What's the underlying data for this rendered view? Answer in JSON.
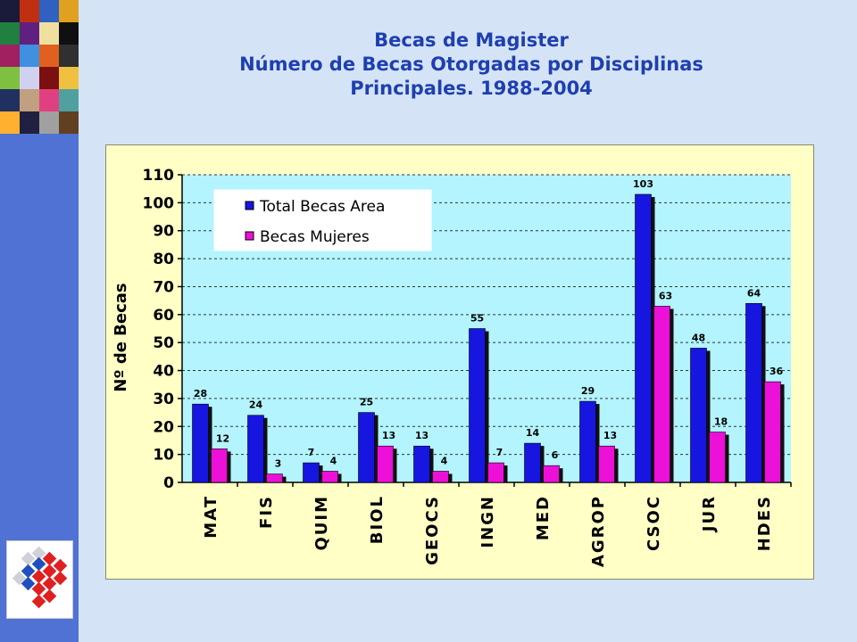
{
  "colors": {
    "sidebar": "#4f72d4",
    "title": "#1f3fb0",
    "plot_bg": "#b3f4ff",
    "frame_bg": "#ffffc6",
    "series_total": "#1616e0",
    "series_mujeres": "#ec10d8"
  },
  "title_lines": [
    "Becas de Magister",
    "Número de Becas Otorgadas por Disciplinas",
    "Principales. 1988-2004"
  ],
  "sidebar": {
    "collage_icon": "photo-collage",
    "logo_icon": "cube-logo"
  },
  "chart_data": {
    "type": "bar",
    "title": "",
    "xlabel": "",
    "ylabel": "Nº de Becas",
    "ylim": [
      0,
      110
    ],
    "yticks": [
      0,
      10,
      20,
      30,
      40,
      50,
      60,
      70,
      80,
      90,
      100,
      110
    ],
    "grid": true,
    "legend_position": "top-left",
    "categories": [
      "MAT",
      "FIS",
      "QUIM",
      "BIOL",
      "GEOCS",
      "INGN",
      "MED",
      "AGROP",
      "CSOC",
      "JUR",
      "HDES"
    ],
    "series": [
      {
        "name": "Total Becas Area",
        "values": [
          28,
          24,
          7,
          25,
          13,
          55,
          14,
          29,
          103,
          48,
          64
        ]
      },
      {
        "name": "Becas Mujeres",
        "values": [
          12,
          3,
          4,
          13,
          4,
          7,
          6,
          13,
          63,
          18,
          36
        ]
      }
    ],
    "data_labels": [
      [
        "28",
        "24",
        "7",
        "25",
        "13",
        "55",
        "14",
        "29",
        "103",
        "48",
        "64"
      ],
      [
        "12",
        "3",
        "4",
        "13",
        "4",
        "7",
        "6",
        "13",
        "63",
        "18",
        "36"
      ]
    ]
  }
}
